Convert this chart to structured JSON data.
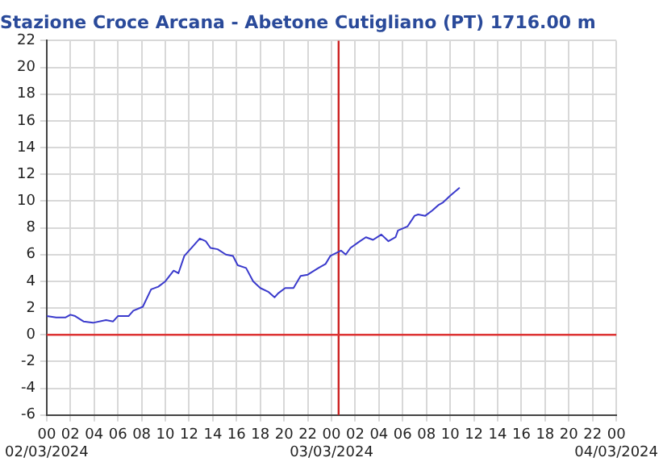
{
  "chart_data": {
    "type": "line",
    "title": "Stazione Croce Arcana - Abetone Cutigliano (PT) 1716.00 m",
    "xlim": [
      "2024-03-02T00:00",
      "2024-03-04T00:00"
    ],
    "xticks": [
      {
        "value": "2024-03-02T00:00",
        "label": "00\n02/03/2024"
      },
      {
        "value": "2024-03-02T02:00",
        "label": "02"
      },
      {
        "value": "2024-03-02T04:00",
        "label": "04"
      },
      {
        "value": "2024-03-02T06:00",
        "label": "06"
      },
      {
        "value": "2024-03-02T08:00",
        "label": "08"
      },
      {
        "value": "2024-03-02T10:00",
        "label": "10"
      },
      {
        "value": "2024-03-02T12:00",
        "label": "12"
      },
      {
        "value": "2024-03-02T14:00",
        "label": "14"
      },
      {
        "value": "2024-03-02T16:00",
        "label": "16"
      },
      {
        "value": "2024-03-02T18:00",
        "label": "18"
      },
      {
        "value": "2024-03-02T20:00",
        "label": "20"
      },
      {
        "value": "2024-03-02T22:00",
        "label": "22"
      },
      {
        "value": "2024-03-03T00:00",
        "label": "00\n03/03/2024"
      },
      {
        "value": "2024-03-03T02:00",
        "label": "02"
      },
      {
        "value": "2024-03-03T04:00",
        "label": "04"
      },
      {
        "value": "2024-03-03T06:00",
        "label": "06"
      },
      {
        "value": "2024-03-03T08:00",
        "label": "08"
      },
      {
        "value": "2024-03-03T10:00",
        "label": "10"
      },
      {
        "value": "2024-03-03T12:00",
        "label": "12"
      },
      {
        "value": "2024-03-03T14:00",
        "label": "14"
      },
      {
        "value": "2024-03-03T16:00",
        "label": "16"
      },
      {
        "value": "2024-03-03T18:00",
        "label": "18"
      },
      {
        "value": "2024-03-03T20:00",
        "label": "20"
      },
      {
        "value": "2024-03-03T22:00",
        "label": "22"
      },
      {
        "value": "2024-03-04T00:00",
        "label": "00\n04/03/2024"
      }
    ],
    "ylim": [
      -6,
      22
    ],
    "yticks": [
      -6,
      -4,
      -2,
      0,
      2,
      4,
      6,
      8,
      10,
      12,
      14,
      16,
      18,
      20,
      22
    ],
    "grid": true,
    "legend": false,
    "marker": "none",
    "line_style": "solid",
    "ref_lines": [
      {
        "axis": "x",
        "value": "2024-03-03T00:36",
        "color": "#cc2222"
      },
      {
        "axis": "y",
        "value": 0,
        "color": "#dd3333"
      }
    ],
    "series": [
      {
        "color": "#3a3acc",
        "x": [
          "2024-03-02T00:00",
          "2024-03-02T00:48",
          "2024-03-02T01:36",
          "2024-03-02T02:00",
          "2024-03-02T02:24",
          "2024-03-02T03:06",
          "2024-03-02T03:54",
          "2024-03-02T05:00",
          "2024-03-02T05:36",
          "2024-03-02T06:00",
          "2024-03-02T06:54",
          "2024-03-02T07:18",
          "2024-03-02T08:06",
          "2024-03-02T08:48",
          "2024-03-02T09:24",
          "2024-03-02T10:00",
          "2024-03-02T10:42",
          "2024-03-02T11:06",
          "2024-03-02T11:36",
          "2024-03-02T12:18",
          "2024-03-02T12:54",
          "2024-03-02T13:24",
          "2024-03-02T13:48",
          "2024-03-02T14:24",
          "2024-03-02T15:06",
          "2024-03-02T15:42",
          "2024-03-02T16:06",
          "2024-03-02T16:48",
          "2024-03-02T17:24",
          "2024-03-02T18:00",
          "2024-03-02T18:42",
          "2024-03-02T19:12",
          "2024-03-02T19:30",
          "2024-03-02T20:06",
          "2024-03-02T20:48",
          "2024-03-02T21:24",
          "2024-03-02T22:00",
          "2024-03-02T22:54",
          "2024-03-02T23:30",
          "2024-03-02T23:54",
          "2024-03-03T00:48",
          "2024-03-03T01:12",
          "2024-03-03T01:36",
          "2024-03-03T02:24",
          "2024-03-03T02:54",
          "2024-03-03T03:30",
          "2024-03-03T04:12",
          "2024-03-03T04:48",
          "2024-03-03T05:24",
          "2024-03-03T05:36",
          "2024-03-03T06:24",
          "2024-03-03T07:00",
          "2024-03-03T07:18",
          "2024-03-03T07:54",
          "2024-03-03T08:30",
          "2024-03-03T09:00",
          "2024-03-03T09:24",
          "2024-03-03T10:00",
          "2024-03-03T10:48"
        ],
        "values": [
          1.4,
          1.3,
          1.3,
          1.5,
          1.4,
          1.0,
          0.9,
          1.1,
          1.0,
          1.4,
          1.4,
          1.8,
          2.1,
          3.4,
          3.6,
          4.0,
          4.8,
          4.6,
          5.9,
          6.6,
          7.2,
          7.0,
          6.5,
          6.4,
          6.0,
          5.9,
          5.2,
          5.0,
          4.0,
          3.5,
          3.2,
          2.8,
          3.1,
          3.5,
          3.5,
          4.4,
          4.5,
          5.0,
          5.3,
          5.9,
          6.3,
          6.0,
          6.5,
          7.0,
          7.3,
          7.1,
          7.5,
          7.0,
          7.3,
          7.8,
          8.1,
          8.9,
          9.0,
          8.9,
          9.3,
          9.7,
          9.9,
          10.4,
          11.0
        ]
      }
    ]
  }
}
